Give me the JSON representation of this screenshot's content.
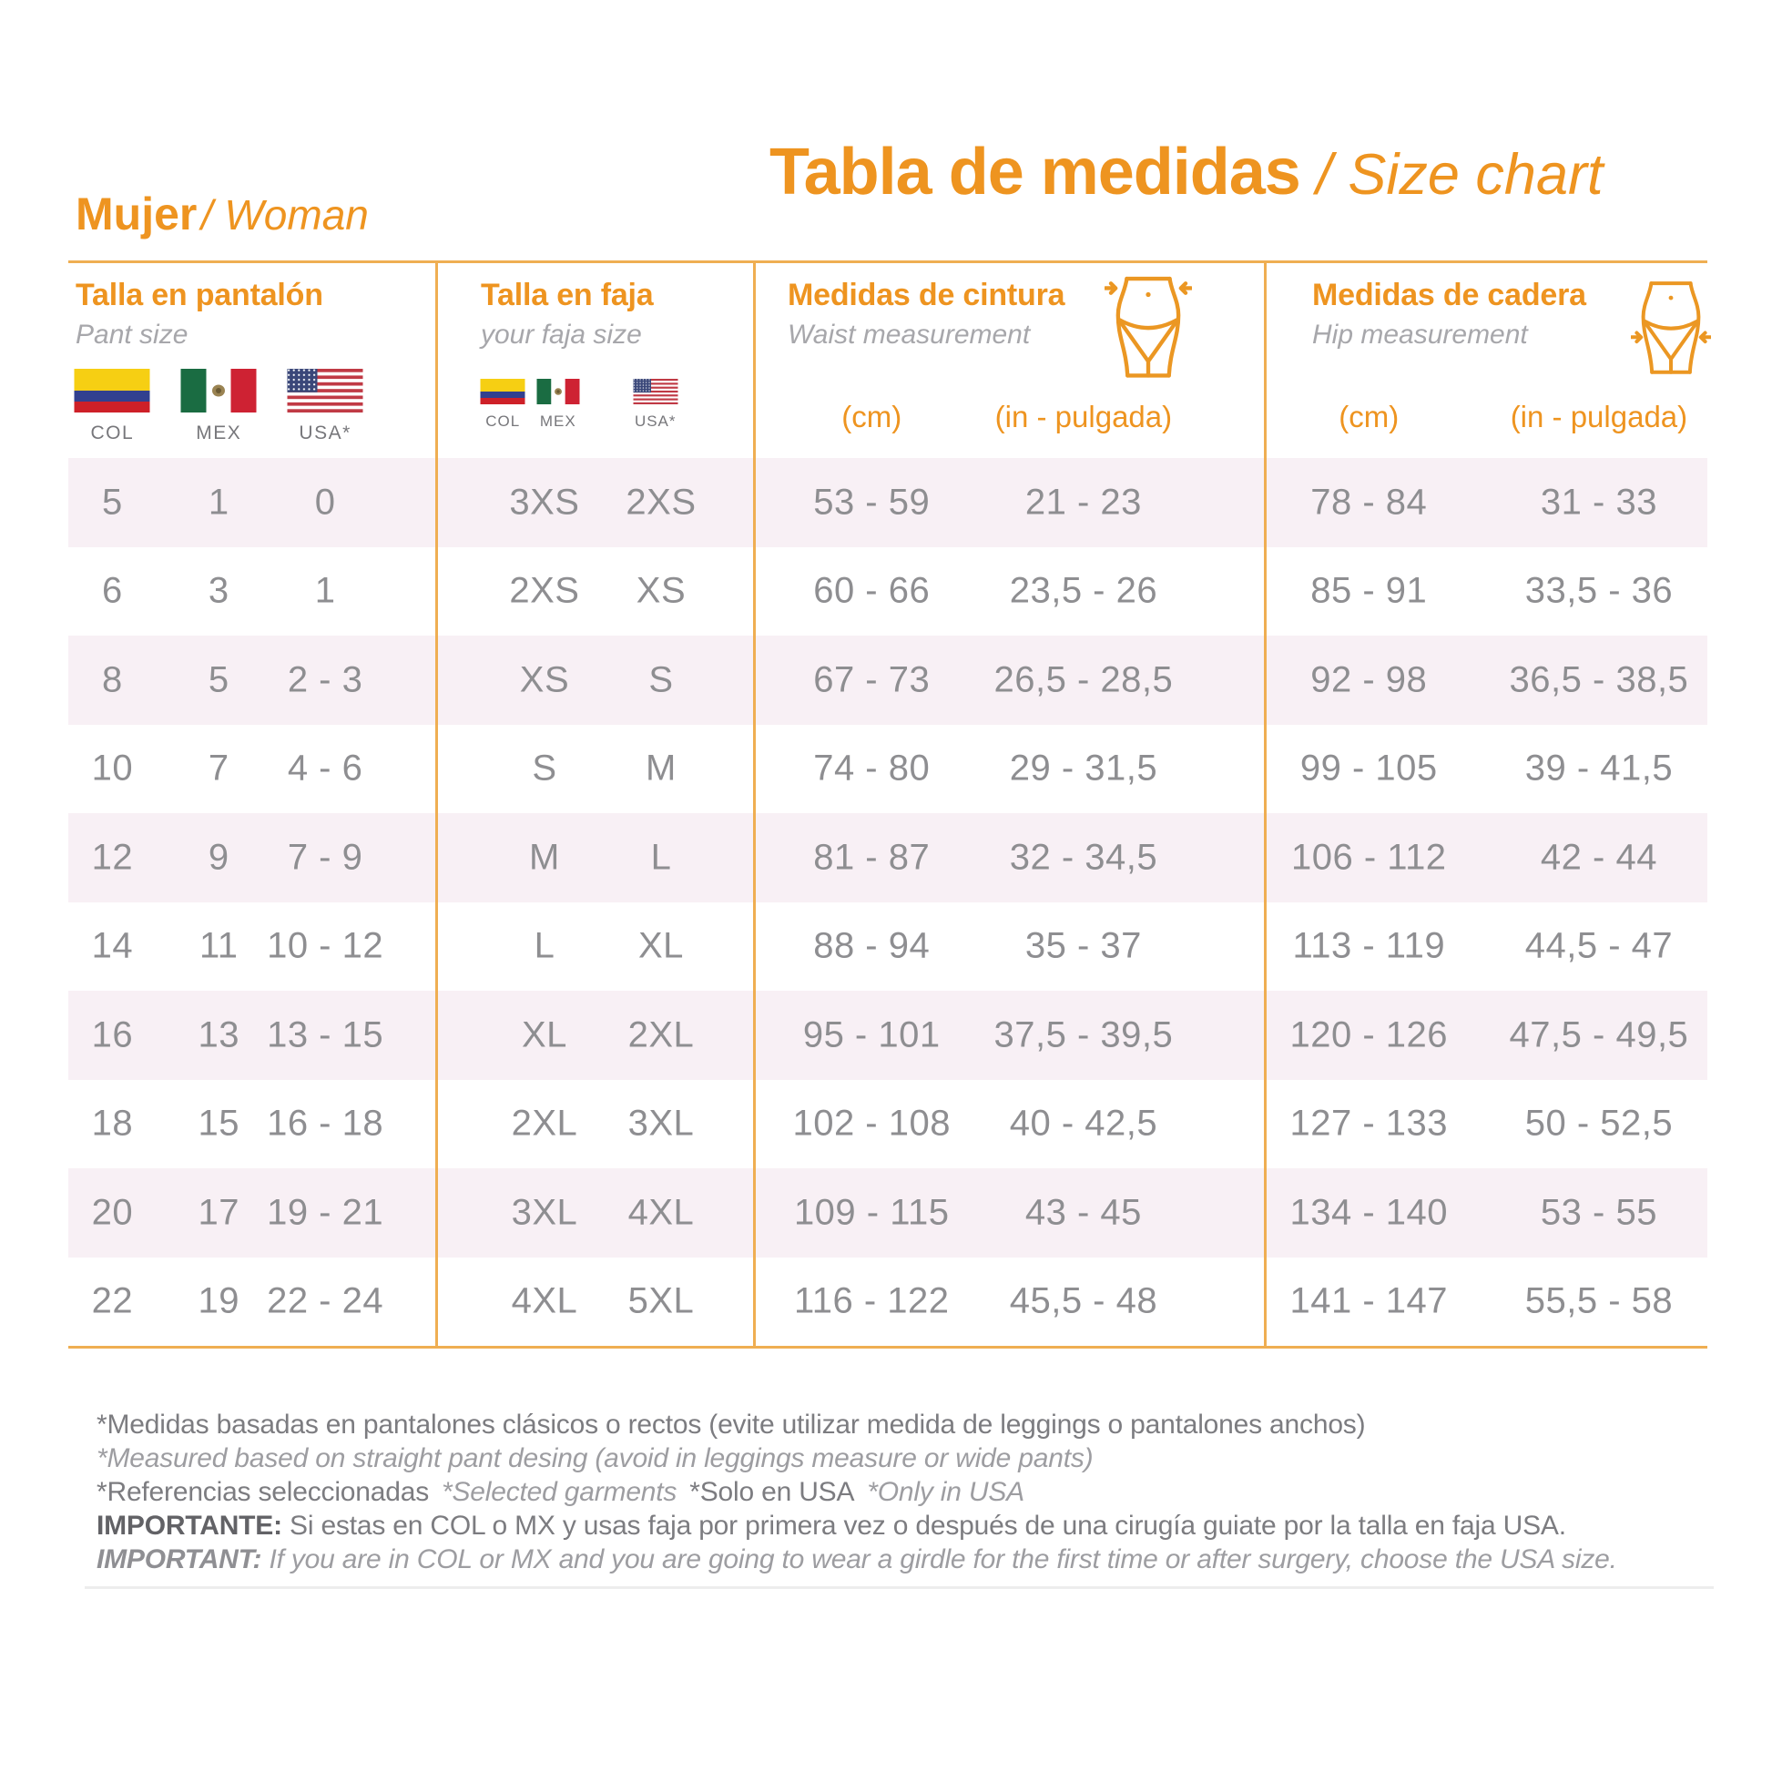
{
  "header": {
    "brand_es": "Mujer",
    "brand_en": "/ Woman",
    "title_es": "Tabla de medidas",
    "title_en": " / Size chart"
  },
  "groups": {
    "pant": {
      "title": "Talla en pantalón",
      "subtitle": "Pant size",
      "flag_labels": [
        "COL",
        "MEX",
        "USA*"
      ]
    },
    "faja": {
      "title": "Talla en faja",
      "subtitle": "your faja size",
      "flag_labels": [
        "COL",
        "MEX",
        "USA*"
      ]
    },
    "waist": {
      "title": "Medidas de cintura",
      "subtitle": "Waist measurement",
      "unit_cm": "(cm)",
      "unit_in": "(in - pulgada)"
    },
    "hip": {
      "title": "Medidas de cadera",
      "subtitle": "Hip measurement",
      "unit_cm": "(cm)",
      "unit_in": "(in - pulgada)"
    }
  },
  "table": {
    "rows": [
      {
        "pant": [
          "5",
          "1",
          "0"
        ],
        "faja": [
          "3XS",
          "2XS"
        ],
        "waist": [
          "53 - 59",
          "21 - 23"
        ],
        "hip": [
          "78 - 84",
          "31 - 33"
        ]
      },
      {
        "pant": [
          "6",
          "3",
          "1"
        ],
        "faja": [
          "2XS",
          "XS"
        ],
        "waist": [
          "60 - 66",
          "23,5 - 26"
        ],
        "hip": [
          "85 - 91",
          "33,5 - 36"
        ]
      },
      {
        "pant": [
          "8",
          "5",
          "2 - 3"
        ],
        "faja": [
          "XS",
          "S"
        ],
        "waist": [
          "67 - 73",
          "26,5 - 28,5"
        ],
        "hip": [
          "92 - 98",
          "36,5 - 38,5"
        ]
      },
      {
        "pant": [
          "10",
          "7",
          "4 - 6"
        ],
        "faja": [
          "S",
          "M"
        ],
        "waist": [
          "74 - 80",
          "29 - 31,5"
        ],
        "hip": [
          "99 - 105",
          "39 - 41,5"
        ]
      },
      {
        "pant": [
          "12",
          "9",
          "7 - 9"
        ],
        "faja": [
          "M",
          "L"
        ],
        "waist": [
          "81 - 87",
          "32 - 34,5"
        ],
        "hip": [
          "106 - 112",
          "42 - 44"
        ]
      },
      {
        "pant": [
          "14",
          "11",
          "10 - 12"
        ],
        "faja": [
          "L",
          "XL"
        ],
        "waist": [
          "88 - 94",
          "35 - 37"
        ],
        "hip": [
          "113 - 119",
          "44,5 - 47"
        ]
      },
      {
        "pant": [
          "16",
          "13",
          "13 - 15"
        ],
        "faja": [
          "XL",
          "2XL"
        ],
        "waist": [
          "95 - 101",
          "37,5 - 39,5"
        ],
        "hip": [
          "120 - 126",
          "47,5 - 49,5"
        ]
      },
      {
        "pant": [
          "18",
          "15",
          "16 - 18"
        ],
        "faja": [
          "2XL",
          "3XL"
        ],
        "waist": [
          "102 - 108",
          "40 - 42,5"
        ],
        "hip": [
          "127 - 133",
          "50 - 52,5"
        ]
      },
      {
        "pant": [
          "20",
          "17",
          "19 - 21"
        ],
        "faja": [
          "3XL",
          "4XL"
        ],
        "waist": [
          "109 - 115",
          "43 - 45"
        ],
        "hip": [
          "134 - 140",
          "53 - 55"
        ]
      },
      {
        "pant": [
          "22",
          "19",
          "22 - 24"
        ],
        "faja": [
          "4XL",
          "5XL"
        ],
        "waist": [
          "116 - 122",
          "45,5 - 48"
        ],
        "hip": [
          "141 - 147",
          "55,5 - 58"
        ]
      }
    ]
  },
  "notes": {
    "line1": "*Medidas basadas en pantalones clásicos o rectos (evite utilizar medida de leggings o pantalones anchos)",
    "line2": "*Measured based on straight pant desing (avoid in leggings measure or wide pants)",
    "line3_es1": "*Referencias seleccionadas",
    "line3_en1": "*Selected garments",
    "line3_es2": "*Solo en USA",
    "line3_en2": "*Only in USA",
    "line4_label": "IMPORTANTE:",
    "line4_text": "Si estas en COL o MX y usas faja por primera vez o después de una cirugía guiate por la talla en faja USA.",
    "line5_label": "IMPORTANT:",
    "line5_text": "If you are in COL or MX and you are going to wear a girdle for the first time or after surgery, choose the USA size."
  },
  "colors": {
    "accent_orange": "#EE9420",
    "line_gold": "#EFAE52",
    "row_pink": "#F8F0F5",
    "text_gray": "#8E8E91"
  }
}
